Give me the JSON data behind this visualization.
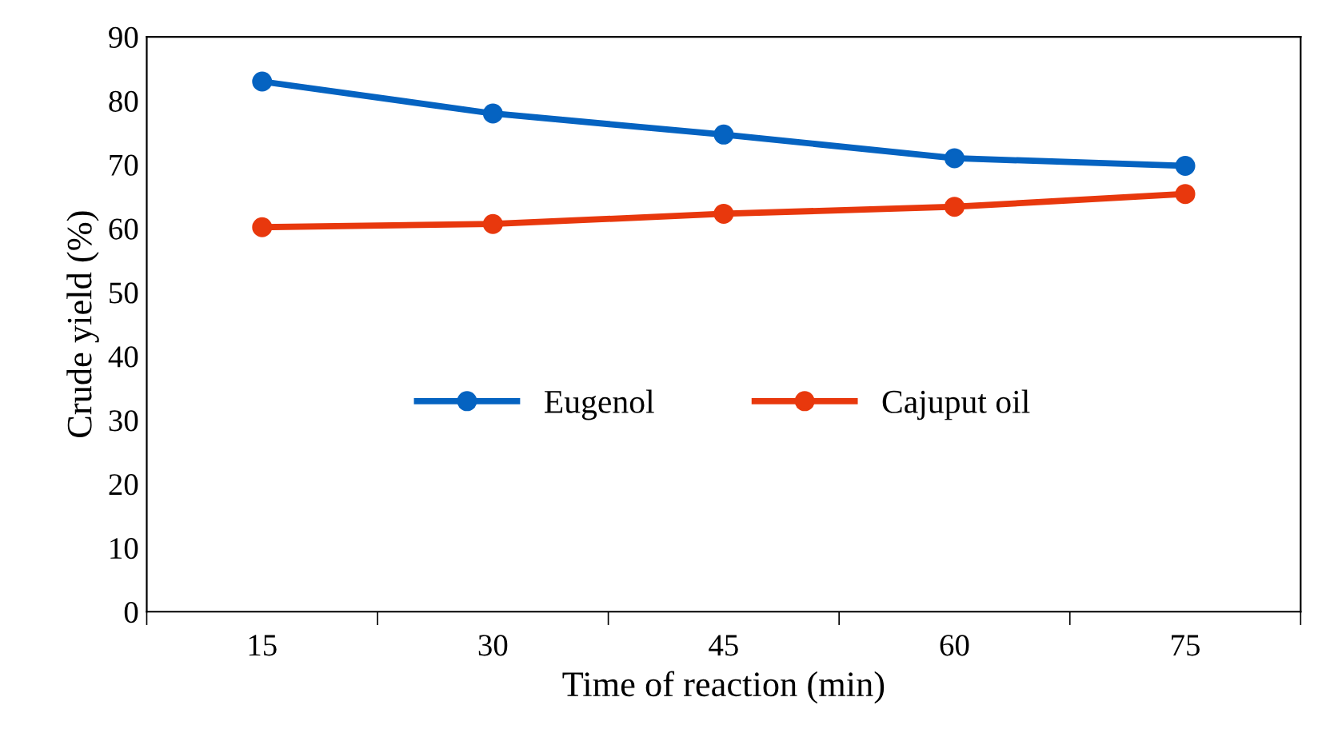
{
  "chart_data": {
    "type": "line",
    "xlabel": "Time of reaction (min)",
    "ylabel": "Crude yield (%)",
    "categories": [
      "15",
      "30",
      "45",
      "60",
      "75"
    ],
    "series": [
      {
        "name": "Eugenol",
        "color": "#0563c1",
        "values": [
          83,
          78,
          74.7,
          71,
          69.8
        ]
      },
      {
        "name": "Cajuput oil",
        "color": "#e8380d",
        "values": [
          60.2,
          60.7,
          62.3,
          63.4,
          65.4
        ]
      }
    ],
    "ylim": [
      0,
      90
    ],
    "yticks": [
      0,
      10,
      20,
      30,
      40,
      50,
      60,
      70,
      80,
      90
    ],
    "grid": false,
    "legend": "center",
    "marker": "circle",
    "line_style": "solid"
  }
}
